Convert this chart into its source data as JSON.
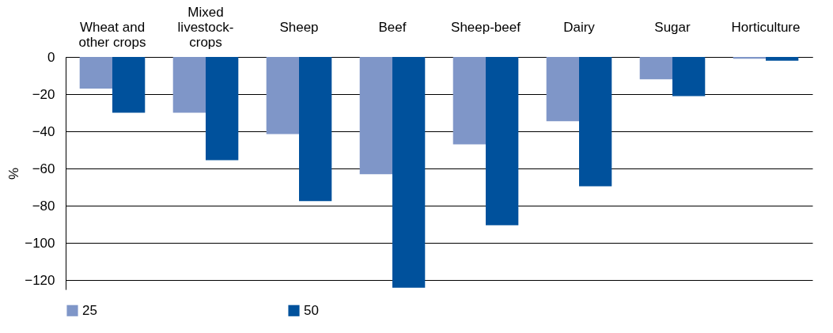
{
  "chart_data": {
    "type": "bar",
    "ylabel": "%",
    "categories": [
      "Wheat and other crops",
      "Mixed livestock-crops",
      "Sheep",
      "Beef",
      "Sheep-beef",
      "Dairy",
      "Sugar",
      "Horticulture"
    ],
    "series": [
      {
        "name": "25",
        "color": "#7f96c8",
        "values": [
          -17,
          -30,
          -41.5,
          -63,
          -47,
          -34.5,
          -12,
          -1
        ]
      },
      {
        "name": "50",
        "color": "#00519c",
        "values": [
          -30,
          -55.5,
          -77.5,
          -124,
          -90.5,
          -69.5,
          -21,
          -2
        ]
      }
    ],
    "ylim": [
      -125,
      0
    ],
    "yticks": [
      -120,
      -100,
      -80,
      -60,
      -40,
      -20,
      0
    ],
    "grid": "y",
    "legend": "bottom"
  }
}
